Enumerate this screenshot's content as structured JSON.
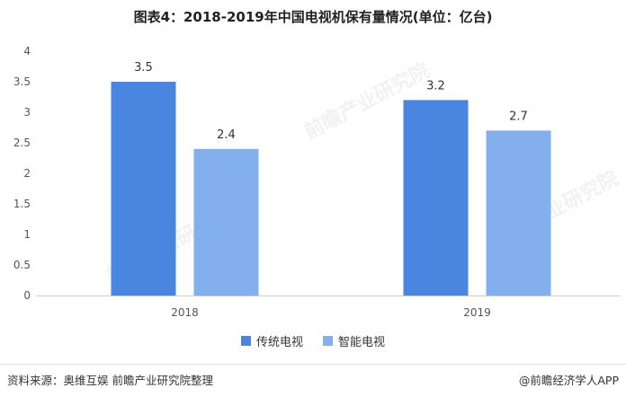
{
  "title": "图表4：2018-2019年中国电视机保有量情况(单位：亿台)",
  "watermark_text": "前瞻产业研究院",
  "chart_data": {
    "type": "bar",
    "categories": [
      "2018",
      "2019"
    ],
    "series": [
      {
        "name": "传统电视",
        "color": "#4a86e0",
        "values": [
          3.5,
          3.2
        ]
      },
      {
        "name": "智能电视",
        "color": "#84afed",
        "values": [
          2.4,
          2.7
        ]
      }
    ],
    "ylim": [
      0,
      4
    ],
    "yticks": [
      "0",
      "0.5",
      "1",
      "1.5",
      "2",
      "2.5",
      "3",
      "3.5",
      "4"
    ],
    "data_labels": true,
    "legend_position": "bottom",
    "grid": false
  },
  "footer": {
    "source": "资料来源：奥维互娱 前瞻产业研究院整理",
    "brand": "@前瞻经济学人APP"
  }
}
